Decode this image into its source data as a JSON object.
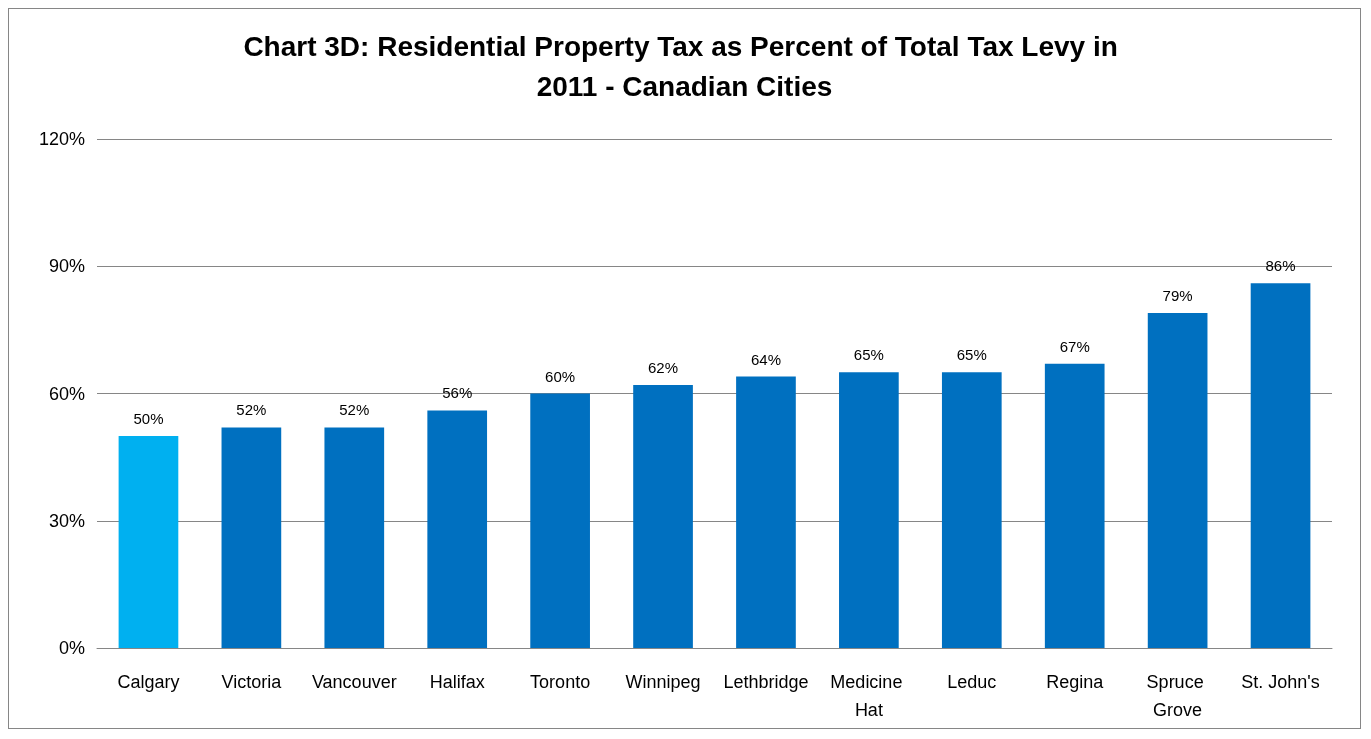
{
  "chart_data": {
    "type": "bar",
    "title": "Chart 3D: Residential Property Tax as Percent of Total Tax Levy in 2011 - Canadian Cities",
    "categories": [
      "Calgary",
      "Victoria",
      "Vancouver",
      "Halifax",
      "Toronto",
      "Winnipeg",
      "Lethbridge",
      "Medicine Hat",
      "Leduc",
      "Regina",
      "Spruce Grove",
      "St. John's"
    ],
    "values": [
      50,
      52,
      52,
      56,
      60,
      62,
      64,
      65,
      65,
      67,
      79,
      86
    ],
    "value_labels": [
      "50%",
      "52%",
      "52%",
      "56%",
      "60%",
      "62%",
      "64%",
      "65%",
      "65%",
      "67%",
      "79%",
      "86%"
    ],
    "colors": [
      "#00b0f0",
      "#0070c0",
      "#0070c0",
      "#0070c0",
      "#0070c0",
      "#0070c0",
      "#0070c0",
      "#0070c0",
      "#0070c0",
      "#0070c0",
      "#0070c0",
      "#0070c0"
    ],
    "ylim": [
      0,
      120
    ],
    "yticks": [
      {
        "value": 0,
        "label": "0%"
      },
      {
        "value": 30,
        "label": "30%"
      },
      {
        "value": 60,
        "label": "60%"
      },
      {
        "value": 90,
        "label": "90%"
      },
      {
        "value": 120,
        "label": "120%"
      }
    ],
    "grid": "y"
  }
}
